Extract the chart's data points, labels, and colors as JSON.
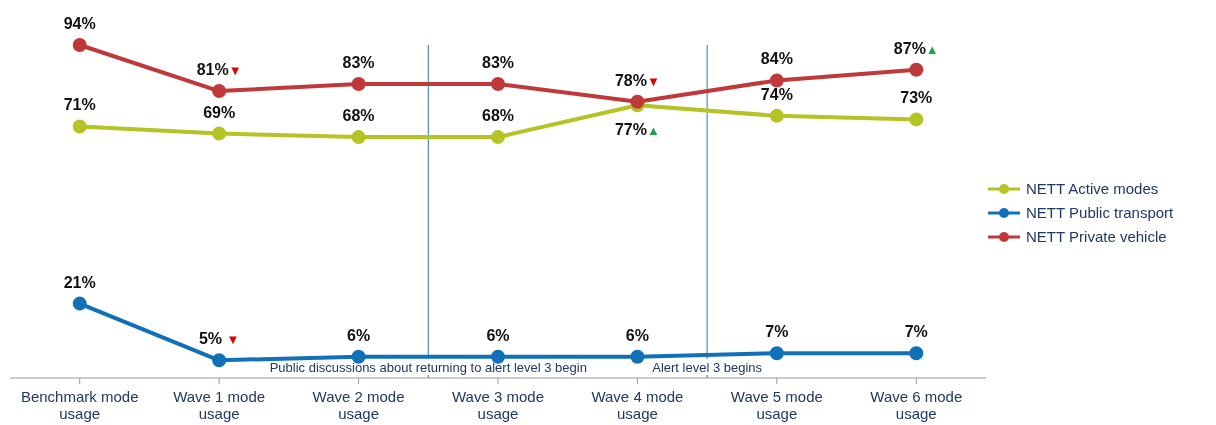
{
  "chart_data": {
    "type": "line",
    "categories": [
      "Benchmark mode usage",
      "Wave 1 mode usage",
      "Wave 2 mode usage",
      "Wave 3 mode usage",
      "Wave 4 mode usage",
      "Wave 5 mode usage",
      "Wave 6 mode usage"
    ],
    "series": [
      {
        "name": "NETT Active modes",
        "color": "#b5c424",
        "values": [
          71,
          69,
          68,
          68,
          77,
          74,
          73
        ],
        "value_labels": [
          "71%",
          "69%",
          "68%",
          "68%",
          "77%▲",
          "74%",
          "73%"
        ]
      },
      {
        "name": "NETT Public transport",
        "color": "#1170b8",
        "values": [
          21,
          5,
          6,
          6,
          6,
          7,
          7
        ],
        "value_labels": [
          "21%",
          "5% ▼",
          "6%",
          "6%",
          "6%",
          "7%",
          "7%"
        ]
      },
      {
        "name": "NETT Private vehicle",
        "color": "#c0393a",
        "values": [
          94,
          81,
          83,
          83,
          78,
          84,
          87
        ],
        "value_labels": [
          "94%",
          "81%▼",
          "83%",
          "83%",
          "78%▼",
          "84%",
          "87%▲"
        ]
      }
    ],
    "annotations": [
      "Public discussions about returning to alert level 3 begin",
      "Alert level 3 begins"
    ],
    "legend": "right",
    "marker": "circle",
    "line_style": "solid"
  }
}
